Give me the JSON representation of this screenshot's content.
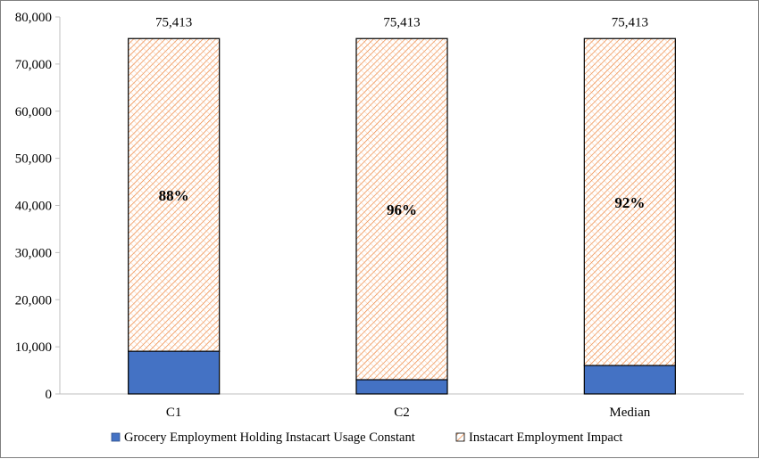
{
  "chart_data": {
    "type": "bar",
    "stacked": true,
    "categories": [
      "C1",
      "C2",
      "Median"
    ],
    "series": [
      {
        "name": "Grocery Employment Holding Instacart Usage Constant",
        "values": [
          9050,
          3017,
          6033
        ],
        "color": "#4472c4"
      },
      {
        "name": "Instacart Employment Impact",
        "values": [
          66363,
          72396,
          69380
        ],
        "color": "#ed7d31",
        "pattern": "hatch"
      }
    ],
    "totals": [
      "75,413",
      "75,413",
      "75,413"
    ],
    "segment_labels": [
      "88%",
      "96%",
      "92%"
    ],
    "yticks": [
      0,
      10000,
      20000,
      30000,
      40000,
      50000,
      60000,
      70000,
      80000
    ],
    "ytick_labels": [
      "0",
      "10,000",
      "20,000",
      "30,000",
      "40,000",
      "50,000",
      "60,000",
      "70,000",
      "80,000"
    ],
    "ylim": [
      0,
      80000
    ],
    "grid": false,
    "legend_position": "bottom"
  }
}
